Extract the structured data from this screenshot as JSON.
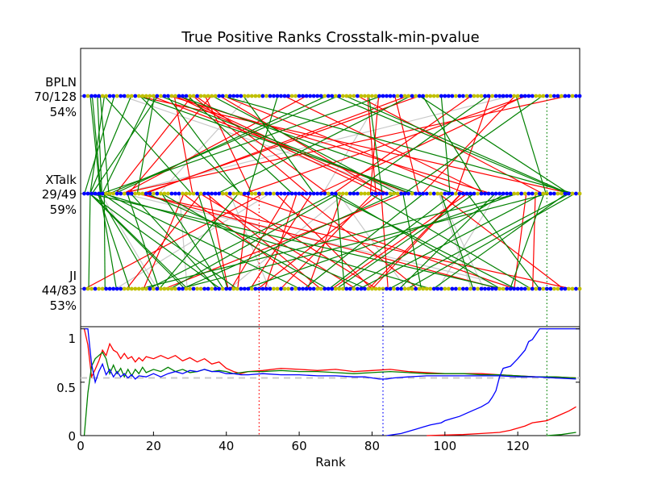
{
  "chart_data": {
    "type": "line",
    "title": "True Positive Ranks Crosstalk-min-pvalue",
    "xlabel": "Rank",
    "xlim": [
      0,
      137
    ],
    "rows": [
      {
        "name": "BPLN",
        "count": "70/128",
        "pct": "54%"
      },
      {
        "name": "XTalk",
        "count": "29/49",
        "pct": "59%"
      },
      {
        "name": "JI",
        "count": "44/83",
        "pct": "53%"
      }
    ],
    "x_ticks": [
      "0",
      "20",
      "40",
      "60",
      "80",
      "100",
      "120"
    ],
    "y_ticks": [
      "0",
      "0.5",
      "1"
    ],
    "bottom_ylim": [
      0,
      1.02
    ],
    "baseline": 0.54,
    "cutoffs": [
      {
        "row": "XTalk",
        "rank": 49,
        "color": "#ff0000"
      },
      {
        "row": "JI",
        "rank": 83,
        "color": "#0000ff"
      },
      {
        "row": "BPLN",
        "rank": 128,
        "color": "#008000"
      }
    ],
    "colors": {
      "true_positive": "#0000ff",
      "negative": "#bfbf00",
      "green_links": "#008000",
      "red_links": "#ff0000",
      "grey_links": "#c8c8c8",
      "blue_curve": "#0000ff",
      "red_curve": "#ff0000",
      "green_curve": "#008000"
    },
    "precision_curves": [
      {
        "color": "#ff0000",
        "points": [
          [
            1,
            1
          ],
          [
            2,
            0.85
          ],
          [
            3,
            0.55
          ],
          [
            4,
            0.62
          ],
          [
            5,
            0.7
          ],
          [
            6,
            0.8
          ],
          [
            7,
            0.75
          ],
          [
            8,
            0.86
          ],
          [
            9,
            0.8
          ],
          [
            10,
            0.78
          ],
          [
            11,
            0.72
          ],
          [
            12,
            0.77
          ],
          [
            13,
            0.72
          ],
          [
            14,
            0.74
          ],
          [
            15,
            0.69
          ],
          [
            16,
            0.73
          ],
          [
            17,
            0.7
          ],
          [
            18,
            0.74
          ],
          [
            20,
            0.72
          ],
          [
            22,
            0.75
          ],
          [
            24,
            0.72
          ],
          [
            26,
            0.75
          ],
          [
            28,
            0.7
          ],
          [
            30,
            0.73
          ],
          [
            32,
            0.69
          ],
          [
            34,
            0.72
          ],
          [
            36,
            0.67
          ],
          [
            38,
            0.69
          ],
          [
            40,
            0.63
          ],
          [
            42,
            0.6
          ],
          [
            44,
            0.58
          ],
          [
            46,
            0.6
          ],
          [
            50,
            0.61
          ],
          [
            55,
            0.63
          ],
          [
            60,
            0.62
          ],
          [
            65,
            0.61
          ],
          [
            70,
            0.62
          ],
          [
            75,
            0.6
          ],
          [
            80,
            0.61
          ],
          [
            85,
            0.62
          ],
          [
            90,
            0.6
          ],
          [
            95,
            0.59
          ],
          [
            100,
            0.58
          ],
          [
            105,
            0.58
          ],
          [
            110,
            0.58
          ],
          [
            115,
            0.57
          ],
          [
            120,
            0.56
          ],
          [
            125,
            0.55
          ],
          [
            130,
            0.55
          ],
          [
            136,
            0.54
          ]
        ]
      },
      {
        "color": "#008000",
        "points": [
          [
            1,
            0
          ],
          [
            2,
            0.4
          ],
          [
            3,
            0.65
          ],
          [
            4,
            0.72
          ],
          [
            5,
            0.75
          ],
          [
            6,
            0.78
          ],
          [
            7,
            0.72
          ],
          [
            8,
            0.58
          ],
          [
            9,
            0.66
          ],
          [
            10,
            0.58
          ],
          [
            11,
            0.63
          ],
          [
            12,
            0.55
          ],
          [
            13,
            0.62
          ],
          [
            14,
            0.56
          ],
          [
            15,
            0.62
          ],
          [
            16,
            0.58
          ],
          [
            17,
            0.64
          ],
          [
            18,
            0.59
          ],
          [
            20,
            0.62
          ],
          [
            22,
            0.6
          ],
          [
            24,
            0.64
          ],
          [
            26,
            0.6
          ],
          [
            28,
            0.62
          ],
          [
            30,
            0.59
          ],
          [
            32,
            0.6
          ],
          [
            34,
            0.62
          ],
          [
            36,
            0.6
          ],
          [
            38,
            0.61
          ],
          [
            40,
            0.6
          ],
          [
            42,
            0.58
          ],
          [
            44,
            0.59
          ],
          [
            46,
            0.6
          ],
          [
            50,
            0.6
          ],
          [
            55,
            0.61
          ],
          [
            60,
            0.6
          ],
          [
            65,
            0.6
          ],
          [
            70,
            0.59
          ],
          [
            75,
            0.58
          ],
          [
            80,
            0.59
          ],
          [
            85,
            0.6
          ],
          [
            90,
            0.59
          ],
          [
            95,
            0.58
          ],
          [
            100,
            0.58
          ],
          [
            105,
            0.58
          ],
          [
            110,
            0.57
          ],
          [
            115,
            0.57
          ],
          [
            120,
            0.56
          ],
          [
            125,
            0.55
          ],
          [
            130,
            0.55
          ],
          [
            136,
            0.54
          ]
        ]
      },
      {
        "color": "#0000ff",
        "points": [
          [
            1,
            1
          ],
          [
            2,
            1
          ],
          [
            3,
            0.67
          ],
          [
            4,
            0.5
          ],
          [
            5,
            0.6
          ],
          [
            6,
            0.67
          ],
          [
            7,
            0.57
          ],
          [
            8,
            0.62
          ],
          [
            9,
            0.55
          ],
          [
            10,
            0.6
          ],
          [
            11,
            0.55
          ],
          [
            12,
            0.58
          ],
          [
            13,
            0.54
          ],
          [
            14,
            0.57
          ],
          [
            15,
            0.53
          ],
          [
            16,
            0.56
          ],
          [
            18,
            0.55
          ],
          [
            20,
            0.58
          ],
          [
            22,
            0.55
          ],
          [
            24,
            0.58
          ],
          [
            26,
            0.6
          ],
          [
            28,
            0.58
          ],
          [
            30,
            0.61
          ],
          [
            32,
            0.6
          ],
          [
            34,
            0.62
          ],
          [
            36,
            0.6
          ],
          [
            38,
            0.6
          ],
          [
            40,
            0.58
          ],
          [
            42,
            0.58
          ],
          [
            44,
            0.57
          ],
          [
            46,
            0.57
          ],
          [
            50,
            0.58
          ],
          [
            55,
            0.57
          ],
          [
            60,
            0.57
          ],
          [
            65,
            0.56
          ],
          [
            70,
            0.56
          ],
          [
            75,
            0.55
          ],
          [
            78,
            0.55
          ],
          [
            80,
            0.54
          ],
          [
            82,
            0.53
          ],
          [
            84,
            0.53
          ],
          [
            86,
            0.54
          ],
          [
            90,
            0.55
          ],
          [
            95,
            0.56
          ],
          [
            100,
            0.56
          ],
          [
            105,
            0.56
          ],
          [
            110,
            0.56
          ],
          [
            115,
            0.56
          ],
          [
            120,
            0.55
          ],
          [
            125,
            0.55
          ],
          [
            130,
            0.54
          ],
          [
            136,
            0.53
          ]
        ]
      },
      {
        "color": "#0000ff",
        "points": [
          [
            84,
            0
          ],
          [
            88,
            0.02
          ],
          [
            90,
            0.04
          ],
          [
            92,
            0.06
          ],
          [
            94,
            0.08
          ],
          [
            96,
            0.1
          ],
          [
            99,
            0.12
          ],
          [
            100,
            0.14
          ],
          [
            102,
            0.16
          ],
          [
            104,
            0.18
          ],
          [
            106,
            0.21
          ],
          [
            108,
            0.24
          ],
          [
            110,
            0.27
          ],
          [
            112,
            0.31
          ],
          [
            113,
            0.36
          ],
          [
            114,
            0.42
          ],
          [
            115,
            0.55
          ],
          [
            116,
            0.63
          ],
          [
            118,
            0.65
          ],
          [
            120,
            0.72
          ],
          [
            122,
            0.8
          ],
          [
            123,
            0.88
          ],
          [
            124,
            0.9
          ],
          [
            126,
            1.0
          ],
          [
            128,
            1.0
          ],
          [
            130,
            1.0
          ],
          [
            137,
            1.0
          ]
        ]
      },
      {
        "color": "#ff0000",
        "points": [
          [
            95,
            0
          ],
          [
            100,
            0.005
          ],
          [
            105,
            0.01
          ],
          [
            110,
            0.02
          ],
          [
            115,
            0.03
          ],
          [
            118,
            0.05
          ],
          [
            120,
            0.07
          ],
          [
            122,
            0.09
          ],
          [
            124,
            0.12
          ],
          [
            126,
            0.13
          ],
          [
            128,
            0.14
          ],
          [
            130,
            0.17
          ],
          [
            132,
            0.2
          ],
          [
            134,
            0.23
          ],
          [
            136,
            0.27
          ]
        ]
      },
      {
        "color": "#008000",
        "points": [
          [
            128,
            0
          ],
          [
            132,
            0.01
          ],
          [
            136,
            0.03
          ]
        ]
      }
    ]
  }
}
